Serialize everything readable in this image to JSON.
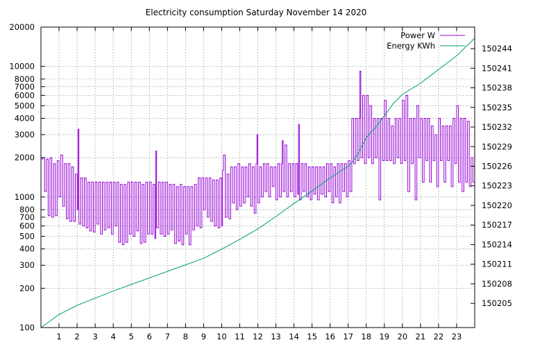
{
  "chart_data": {
    "type": "line",
    "title": "Electricity consumption Saturday November 14 2020",
    "xlabel": "",
    "ylabel": "",
    "grid": true,
    "legend_position": "top-right",
    "x_axis": {
      "range": [
        0,
        24
      ],
      "ticks": [
        "1",
        "2",
        "3",
        "4",
        "5",
        "6",
        "7",
        "8",
        "9",
        "10",
        "11",
        "12",
        "13",
        "14",
        "15",
        "16",
        "17",
        "18",
        "19",
        "20",
        "21",
        "22",
        "23"
      ]
    },
    "y_axis_left": {
      "scale": "log",
      "range": [
        100,
        20000
      ],
      "ticks": [
        100,
        200,
        300,
        400,
        500,
        600,
        700,
        800,
        1000,
        2000,
        3000,
        4000,
        5000,
        6000,
        7000,
        8000,
        10000,
        20000
      ],
      "tick_labels": [
        "100",
        "200",
        "300",
        "400",
        "500",
        "600",
        "700",
        "800",
        "1000",
        "2000",
        "3000",
        "4000",
        "5000",
        "6000",
        "7000",
        "8000",
        "10000",
        "20000"
      ]
    },
    "y_axis_right": {
      "scale": "linear",
      "range": [
        150201.3,
        150247.3
      ],
      "ticks": [
        150205,
        150208,
        150211,
        150214,
        150217,
        150220,
        150223,
        150226,
        150229,
        150232,
        150235,
        150238,
        150241,
        150244
      ],
      "tick_labels": [
        "150205",
        "150208",
        "150211",
        "150214",
        "150217",
        "150220",
        "150223",
        "150226",
        "150229",
        "150232",
        "150235",
        "150238",
        "150241",
        "150244"
      ]
    },
    "series": [
      {
        "name": "Power W",
        "axis": "left",
        "color": "#9400d3",
        "style": "steps",
        "points": [
          [
            0,
            1950
          ],
          [
            0.1,
            2000
          ],
          [
            0.2,
            1100
          ],
          [
            0.3,
            1950
          ],
          [
            0.4,
            720
          ],
          [
            0.5,
            2000
          ],
          [
            0.6,
            700
          ],
          [
            0.7,
            1800
          ],
          [
            0.8,
            720
          ],
          [
            0.9,
            1900
          ],
          [
            1.0,
            1000
          ],
          [
            1.1,
            2100
          ],
          [
            1.2,
            850
          ],
          [
            1.3,
            1800
          ],
          [
            1.4,
            680
          ],
          [
            1.5,
            1800
          ],
          [
            1.6,
            650
          ],
          [
            1.7,
            1700
          ],
          [
            1.8,
            650
          ],
          [
            1.9,
            1500
          ],
          [
            2.0,
            800
          ],
          [
            2.05,
            3300
          ],
          [
            2.1,
            620
          ],
          [
            2.2,
            1400
          ],
          [
            2.3,
            600
          ],
          [
            2.4,
            1400
          ],
          [
            2.5,
            580
          ],
          [
            2.6,
            1300
          ],
          [
            2.7,
            550
          ],
          [
            2.8,
            1300
          ],
          [
            2.9,
            540
          ],
          [
            3.0,
            1300
          ],
          [
            3.1,
            620
          ],
          [
            3.2,
            1300
          ],
          [
            3.3,
            520
          ],
          [
            3.4,
            1300
          ],
          [
            3.5,
            560
          ],
          [
            3.6,
            1300
          ],
          [
            3.7,
            580
          ],
          [
            3.8,
            1300
          ],
          [
            3.9,
            520
          ],
          [
            4.0,
            1300
          ],
          [
            4.1,
            600
          ],
          [
            4.2,
            1300
          ],
          [
            4.3,
            450
          ],
          [
            4.4,
            1250
          ],
          [
            4.5,
            430
          ],
          [
            4.6,
            1250
          ],
          [
            4.7,
            450
          ],
          [
            4.8,
            1300
          ],
          [
            4.9,
            520
          ],
          [
            5.0,
            1300
          ],
          [
            5.1,
            500
          ],
          [
            5.2,
            1300
          ],
          [
            5.3,
            550
          ],
          [
            5.4,
            1300
          ],
          [
            5.5,
            440
          ],
          [
            5.6,
            1250
          ],
          [
            5.7,
            450
          ],
          [
            5.8,
            1300
          ],
          [
            5.9,
            520
          ],
          [
            6.0,
            1300
          ],
          [
            6.1,
            520
          ],
          [
            6.2,
            1250
          ],
          [
            6.3,
            480
          ],
          [
            6.35,
            2250
          ],
          [
            6.4,
            580
          ],
          [
            6.5,
            1300
          ],
          [
            6.6,
            520
          ],
          [
            6.7,
            1300
          ],
          [
            6.8,
            500
          ],
          [
            6.9,
            1300
          ],
          [
            7.0,
            520
          ],
          [
            7.1,
            1250
          ],
          [
            7.2,
            560
          ],
          [
            7.3,
            1250
          ],
          [
            7.4,
            440
          ],
          [
            7.5,
            1200
          ],
          [
            7.6,
            460
          ],
          [
            7.7,
            1250
          ],
          [
            7.8,
            430
          ],
          [
            7.9,
            1200
          ],
          [
            8.0,
            520
          ],
          [
            8.1,
            1200
          ],
          [
            8.2,
            430
          ],
          [
            8.3,
            1200
          ],
          [
            8.4,
            560
          ],
          [
            8.5,
            1250
          ],
          [
            8.6,
            600
          ],
          [
            8.7,
            1400
          ],
          [
            8.8,
            580
          ],
          [
            8.9,
            1400
          ],
          [
            9.0,
            800
          ],
          [
            9.1,
            1400
          ],
          [
            9.2,
            700
          ],
          [
            9.3,
            1400
          ],
          [
            9.4,
            650
          ],
          [
            9.5,
            1350
          ],
          [
            9.6,
            600
          ],
          [
            9.7,
            1350
          ],
          [
            9.8,
            580
          ],
          [
            9.9,
            1400
          ],
          [
            10.0,
            600
          ],
          [
            10.05,
            1600
          ],
          [
            10.1,
            2100
          ],
          [
            10.2,
            700
          ],
          [
            10.3,
            1500
          ],
          [
            10.4,
            680
          ],
          [
            10.5,
            1700
          ],
          [
            10.6,
            900
          ],
          [
            10.7,
            1700
          ],
          [
            10.8,
            800
          ],
          [
            10.9,
            1800
          ],
          [
            11.0,
            850
          ],
          [
            11.1,
            1700
          ],
          [
            11.2,
            900
          ],
          [
            11.3,
            1700
          ],
          [
            11.4,
            1000
          ],
          [
            11.5,
            1800
          ],
          [
            11.6,
            850
          ],
          [
            11.7,
            1700
          ],
          [
            11.8,
            750
          ],
          [
            11.9,
            1800
          ],
          [
            11.95,
            3000
          ],
          [
            12.0,
            900
          ],
          [
            12.1,
            1700
          ],
          [
            12.2,
            1000
          ],
          [
            12.3,
            1800
          ],
          [
            12.4,
            1100
          ],
          [
            12.5,
            1800
          ],
          [
            12.6,
            1000
          ],
          [
            12.7,
            1700
          ],
          [
            12.8,
            1200
          ],
          [
            12.9,
            1700
          ],
          [
            13.0,
            950
          ],
          [
            13.1,
            1800
          ],
          [
            13.2,
            1000
          ],
          [
            13.3,
            1800
          ],
          [
            13.35,
            2700
          ],
          [
            13.4,
            1100
          ],
          [
            13.5,
            2500
          ],
          [
            13.6,
            1000
          ],
          [
            13.7,
            1800
          ],
          [
            13.8,
            1100
          ],
          [
            13.9,
            1800
          ],
          [
            14.0,
            1000
          ],
          [
            14.1,
            1800
          ],
          [
            14.2,
            1050
          ],
          [
            14.25,
            3600
          ],
          [
            14.3,
            950
          ],
          [
            14.4,
            1800
          ],
          [
            14.5,
            1100
          ],
          [
            14.6,
            1800
          ],
          [
            14.7,
            1000
          ],
          [
            14.8,
            1700
          ],
          [
            14.9,
            950
          ],
          [
            15.0,
            1700
          ],
          [
            15.1,
            1050
          ],
          [
            15.2,
            1700
          ],
          [
            15.3,
            950
          ],
          [
            15.4,
            1700
          ],
          [
            15.5,
            1050
          ],
          [
            15.6,
            1700
          ],
          [
            15.7,
            1000
          ],
          [
            15.8,
            1800
          ],
          [
            15.9,
            1100
          ],
          [
            16.0,
            1800
          ],
          [
            16.1,
            900
          ],
          [
            16.2,
            1700
          ],
          [
            16.3,
            1000
          ],
          [
            16.4,
            1800
          ],
          [
            16.5,
            900
          ],
          [
            16.6,
            1800
          ],
          [
            16.7,
            1100
          ],
          [
            16.8,
            1800
          ],
          [
            16.9,
            1000
          ],
          [
            17.0,
            1900
          ],
          [
            17.1,
            1100
          ],
          [
            17.2,
            4000
          ],
          [
            17.3,
            1800
          ],
          [
            17.4,
            4000
          ],
          [
            17.5,
            1900
          ],
          [
            17.6,
            4000
          ],
          [
            17.65,
            9200
          ],
          [
            17.7,
            2000
          ],
          [
            17.8,
            6000
          ],
          [
            17.9,
            1800
          ],
          [
            18.0,
            6000
          ],
          [
            18.1,
            2000
          ],
          [
            18.2,
            5000
          ],
          [
            18.3,
            1800
          ],
          [
            18.4,
            4000
          ],
          [
            18.5,
            2000
          ],
          [
            18.6,
            4000
          ],
          [
            18.7,
            950
          ],
          [
            18.8,
            4000
          ],
          [
            18.9,
            1900
          ],
          [
            19.0,
            5500
          ],
          [
            19.1,
            1900
          ],
          [
            19.2,
            4000
          ],
          [
            19.3,
            1900
          ],
          [
            19.4,
            3500
          ],
          [
            19.5,
            1800
          ],
          [
            19.6,
            4000
          ],
          [
            19.7,
            2000
          ],
          [
            19.8,
            4000
          ],
          [
            19.9,
            1800
          ],
          [
            20.0,
            5500
          ],
          [
            20.1,
            1900
          ],
          [
            20.2,
            6000
          ],
          [
            20.3,
            1100
          ],
          [
            20.4,
            4000
          ],
          [
            20.5,
            1800
          ],
          [
            20.6,
            4000
          ],
          [
            20.7,
            950
          ],
          [
            20.8,
            5000
          ],
          [
            20.9,
            2000
          ],
          [
            21.0,
            4000
          ],
          [
            21.1,
            1300
          ],
          [
            21.2,
            4000
          ],
          [
            21.3,
            1900
          ],
          [
            21.4,
            4000
          ],
          [
            21.5,
            1300
          ],
          [
            21.6,
            3500
          ],
          [
            21.7,
            1900
          ],
          [
            21.8,
            3000
          ],
          [
            21.9,
            1200
          ],
          [
            22.0,
            4000
          ],
          [
            22.1,
            1900
          ],
          [
            22.2,
            3500
          ],
          [
            22.3,
            1300
          ],
          [
            22.4,
            3500
          ],
          [
            22.5,
            1900
          ],
          [
            22.6,
            3500
          ],
          [
            22.7,
            1200
          ],
          [
            22.8,
            4000
          ],
          [
            22.9,
            1800
          ],
          [
            23.0,
            5000
          ],
          [
            23.1,
            1300
          ],
          [
            23.2,
            4000
          ],
          [
            23.3,
            1100
          ],
          [
            23.4,
            4000
          ],
          [
            23.5,
            1300
          ],
          [
            23.6,
            3800
          ],
          [
            23.7,
            1200
          ],
          [
            23.8,
            2000
          ],
          [
            23.9,
            1300
          ]
        ]
      },
      {
        "name": "Energy KWh",
        "axis": "right",
        "color": "#009e73",
        "style": "line",
        "points": [
          [
            0,
            150201.3
          ],
          [
            0.5,
            150202.3
          ],
          [
            1,
            150203.3
          ],
          [
            2,
            150204.7
          ],
          [
            3,
            150205.8
          ],
          [
            4,
            150206.9
          ],
          [
            5,
            150207.9
          ],
          [
            6,
            150208.9
          ],
          [
            7,
            150209.9
          ],
          [
            8,
            150210.9
          ],
          [
            9,
            150211.9
          ],
          [
            10,
            150213.3
          ],
          [
            11,
            150214.8
          ],
          [
            12,
            150216.4
          ],
          [
            13,
            150218.3
          ],
          [
            14,
            150220.3
          ],
          [
            15,
            150222.2
          ],
          [
            16,
            150224.2
          ],
          [
            17,
            150226.0
          ],
          [
            17.2,
            150226.5
          ],
          [
            17.6,
            150228.2
          ],
          [
            18,
            150230.4
          ],
          [
            18.5,
            150231.9
          ],
          [
            19,
            150233.7
          ],
          [
            19.5,
            150235.6
          ],
          [
            20,
            150237.0
          ],
          [
            21,
            150238.7
          ],
          [
            22,
            150240.8
          ],
          [
            23,
            150242.9
          ],
          [
            24,
            150245.6
          ]
        ]
      }
    ]
  }
}
